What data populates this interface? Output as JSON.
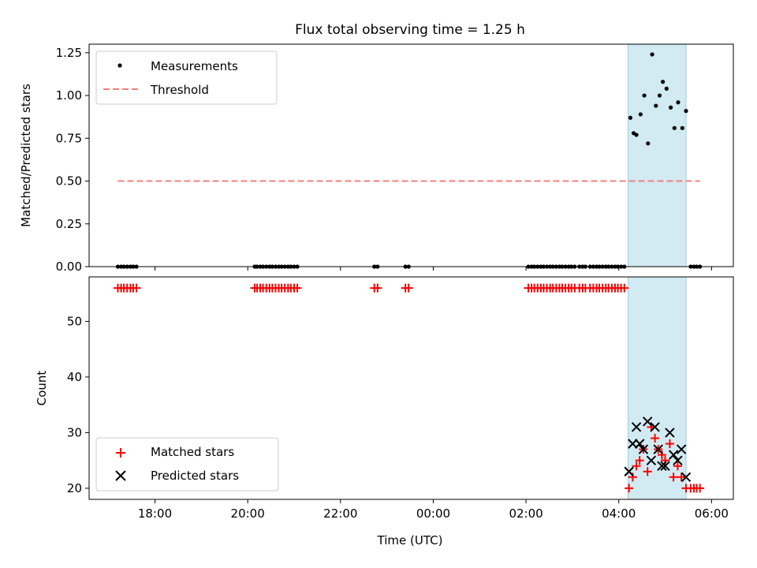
{
  "title": "Flux total observing time = 1.25 h",
  "chart_data": [
    {
      "type": "scatter",
      "panel": "top",
      "title": "Flux total observing time = 1.25 h",
      "xlabel": "",
      "ylabel": "Matched/Predicted stars",
      "xlim": [
        16.58,
        30.47
      ],
      "ylim": [
        0,
        1.3
      ],
      "x_ticks": [
        18,
        20,
        22,
        24,
        26,
        28,
        30
      ],
      "x_tick_labels": [
        "18:00",
        "20:00",
        "22:00",
        "00:00",
        "02:00",
        "04:00",
        "06:00"
      ],
      "y_ticks": [
        0,
        0.25,
        0.5,
        0.75,
        1.0,
        1.25
      ],
      "y_tick_labels": [
        "0.00",
        "0.25",
        "0.50",
        "0.75",
        "1.00",
        "1.25"
      ],
      "grid": false,
      "legend_position": "upper-left",
      "shaded_span": {
        "x": [
          28.2,
          29.45
        ],
        "color": "#add8e6"
      },
      "series": [
        {
          "name": "Measurements",
          "kind": "scatter",
          "marker": "dot",
          "color": "#000000",
          "x": [
            17.2,
            17.27,
            17.33,
            17.4,
            17.47,
            17.53,
            17.6,
            20.15,
            20.2,
            20.27,
            20.33,
            20.4,
            20.47,
            20.53,
            20.6,
            20.67,
            20.73,
            20.8,
            20.87,
            20.93,
            21.0,
            21.07,
            22.73,
            22.8,
            23.4,
            23.47,
            26.05,
            26.12,
            26.18,
            26.25,
            26.32,
            26.38,
            26.45,
            26.52,
            26.58,
            26.65,
            26.72,
            26.78,
            26.85,
            26.92,
            26.98,
            27.05,
            27.15,
            27.22,
            27.28,
            27.38,
            27.45,
            27.52,
            27.58,
            27.65,
            27.72,
            27.78,
            27.85,
            27.92,
            27.98,
            28.05,
            28.12,
            28.25,
            28.32,
            28.38,
            28.47,
            28.55,
            28.63,
            28.72,
            28.8,
            28.88,
            28.95,
            29.03,
            29.12,
            29.2,
            29.28,
            29.37,
            29.45,
            29.55,
            29.62,
            29.68,
            29.75
          ],
          "y": [
            0,
            0,
            0,
            0,
            0,
            0,
            0,
            0,
            0,
            0,
            0,
            0,
            0,
            0,
            0,
            0,
            0,
            0,
            0,
            0,
            0,
            0,
            0,
            0,
            0,
            0,
            0,
            0,
            0,
            0,
            0,
            0,
            0,
            0,
            0,
            0,
            0,
            0,
            0,
            0,
            0,
            0,
            0,
            0,
            0,
            0,
            0,
            0,
            0,
            0,
            0,
            0,
            0,
            0,
            0,
            0,
            0,
            0.87,
            0.78,
            0.77,
            0.89,
            1.0,
            0.72,
            1.24,
            0.94,
            1.0,
            1.08,
            1.04,
            0.93,
            0.81,
            0.96,
            0.81,
            0.91,
            0,
            0,
            0,
            0
          ]
        },
        {
          "name": "Threshold",
          "kind": "line",
          "dash": true,
          "color": "#f08080",
          "x": [
            17.2,
            29.75
          ],
          "y": [
            0.5,
            0.5
          ]
        }
      ]
    },
    {
      "type": "scatter",
      "panel": "bottom",
      "title": "",
      "xlabel": "Time (UTC)",
      "ylabel": "Count",
      "xlim": [
        16.58,
        30.47
      ],
      "ylim": [
        18,
        58
      ],
      "x_ticks": [
        18,
        20,
        22,
        24,
        26,
        28,
        30
      ],
      "x_tick_labels": [
        "18:00",
        "20:00",
        "22:00",
        "00:00",
        "02:00",
        "04:00",
        "06:00"
      ],
      "y_ticks": [
        20,
        30,
        40,
        50
      ],
      "y_tick_labels": [
        "20",
        "30",
        "40",
        "50"
      ],
      "grid": false,
      "legend_position": "lower-left",
      "shaded_span": {
        "x": [
          28.2,
          29.45
        ],
        "color": "#add8e6"
      },
      "series": [
        {
          "name": "Matched stars",
          "kind": "scatter",
          "marker": "plus",
          "color": "#ff0000",
          "x": [
            17.2,
            17.27,
            17.33,
            17.4,
            17.47,
            17.53,
            17.6,
            20.15,
            20.2,
            20.27,
            20.33,
            20.4,
            20.47,
            20.53,
            20.6,
            20.67,
            20.73,
            20.8,
            20.87,
            20.93,
            21.0,
            21.07,
            22.73,
            22.8,
            23.4,
            23.47,
            26.05,
            26.12,
            26.18,
            26.25,
            26.32,
            26.38,
            26.45,
            26.52,
            26.58,
            26.65,
            26.72,
            26.78,
            26.85,
            26.92,
            26.98,
            27.05,
            27.15,
            27.22,
            27.28,
            27.38,
            27.45,
            27.52,
            27.58,
            27.65,
            27.72,
            27.78,
            27.85,
            27.92,
            27.98,
            28.05,
            28.12,
            28.22,
            28.3,
            28.38,
            28.45,
            28.53,
            28.62,
            28.7,
            28.78,
            28.85,
            28.93,
            29.0,
            29.1,
            29.18,
            29.27,
            29.35,
            29.45,
            29.55,
            29.62,
            29.68,
            29.75
          ],
          "y": [
            56,
            56,
            56,
            56,
            56,
            56,
            56,
            56,
            56,
            56,
            56,
            56,
            56,
            56,
            56,
            56,
            56,
            56,
            56,
            56,
            56,
            56,
            56,
            56,
            56,
            56,
            56,
            56,
            56,
            56,
            56,
            56,
            56,
            56,
            56,
            56,
            56,
            56,
            56,
            56,
            56,
            56,
            56,
            56,
            56,
            56,
            56,
            56,
            56,
            56,
            56,
            56,
            56,
            56,
            56,
            56,
            56,
            20,
            22,
            24,
            25,
            27,
            23,
            31,
            29,
            27,
            26,
            25,
            28,
            22,
            24,
            22,
            20,
            20,
            20,
            20,
            20
          ]
        },
        {
          "name": "Predicted stars",
          "kind": "scatter",
          "marker": "x",
          "color": "#000000",
          "x": [
            28.22,
            28.3,
            28.38,
            28.45,
            28.53,
            28.62,
            28.7,
            28.78,
            28.85,
            28.93,
            29.0,
            29.1,
            29.18,
            29.27,
            29.35,
            29.45
          ],
          "y": [
            23,
            28,
            31,
            28,
            27,
            32,
            25,
            31,
            27,
            24,
            24,
            30,
            26,
            25,
            27,
            22
          ]
        }
      ]
    }
  ]
}
